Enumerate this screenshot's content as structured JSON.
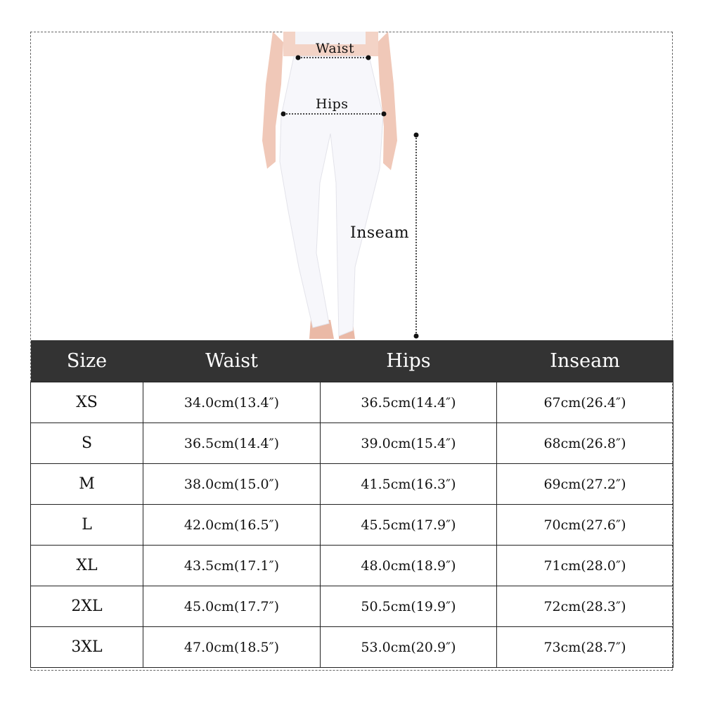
{
  "illustration": {
    "labels": {
      "waist": "Waist",
      "hips": "Hips",
      "inseam": "Inseam"
    }
  },
  "table": {
    "headers": [
      "Size",
      "Waist",
      "Hips",
      "Inseam"
    ],
    "header_bg": "#333333",
    "rows": [
      [
        "XS",
        "34.0cm(13.4″)",
        "36.5cm(14.4″)",
        "67cm(26.4″)"
      ],
      [
        "S",
        "36.5cm(14.4″)",
        "39.0cm(15.4″)",
        "68cm(26.8″)"
      ],
      [
        "M",
        "38.0cm(15.0″)",
        "41.5cm(16.3″)",
        "69cm(27.2″)"
      ],
      [
        "L",
        "42.0cm(16.5″)",
        "45.5cm(17.9″)",
        "70cm(27.6″)"
      ],
      [
        "XL",
        "43.5cm(17.1″)",
        "48.0cm(18.9″)",
        "71cm(28.0″)"
      ],
      [
        "2XL",
        "45.0cm(17.7″)",
        "50.5cm(19.9″)",
        "72cm(28.3″)"
      ],
      [
        "3XL",
        "47.0cm(18.5″)",
        "53.0cm(20.9″)",
        "73cm(28.7″)"
      ]
    ]
  }
}
